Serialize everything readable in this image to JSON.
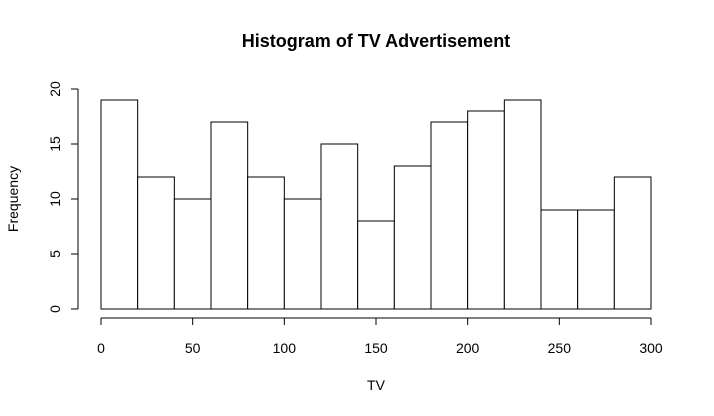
{
  "chart_data": {
    "type": "bar",
    "title": "Histogram of TV Advertisement",
    "xlabel": "TV",
    "ylabel": "Frequency",
    "bins": [
      {
        "start": 0,
        "end": 20,
        "count": 19
      },
      {
        "start": 20,
        "end": 40,
        "count": 12
      },
      {
        "start": 40,
        "end": 60,
        "count": 10
      },
      {
        "start": 60,
        "end": 80,
        "count": 17
      },
      {
        "start": 80,
        "end": 100,
        "count": 12
      },
      {
        "start": 100,
        "end": 120,
        "count": 10
      },
      {
        "start": 120,
        "end": 140,
        "count": 15
      },
      {
        "start": 140,
        "end": 160,
        "count": 8
      },
      {
        "start": 160,
        "end": 180,
        "count": 13
      },
      {
        "start": 180,
        "end": 200,
        "count": 17
      },
      {
        "start": 200,
        "end": 220,
        "count": 18
      },
      {
        "start": 220,
        "end": 240,
        "count": 19
      },
      {
        "start": 240,
        "end": 260,
        "count": 9
      },
      {
        "start": 260,
        "end": 280,
        "count": 9
      },
      {
        "start": 280,
        "end": 300,
        "count": 12
      }
    ],
    "xlim": [
      0,
      300
    ],
    "ylim": [
      0,
      20
    ],
    "xticks": [
      "0",
      "50",
      "100",
      "150",
      "200",
      "250",
      "300"
    ],
    "yticks": [
      "0",
      "5",
      "10",
      "15",
      "20"
    ],
    "grid": false,
    "legend": "none",
    "colors": {
      "bar_fill": "#ffffff",
      "bar_stroke": "#000000"
    }
  }
}
